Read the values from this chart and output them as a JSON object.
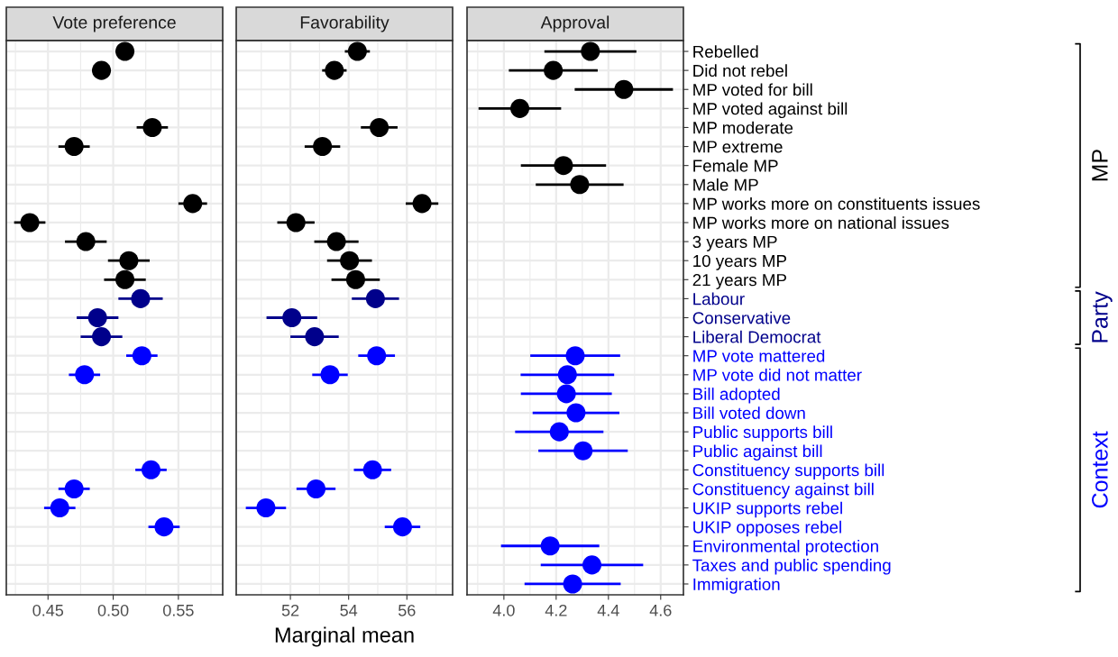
{
  "chart_data": [
    {
      "type": "scatter",
      "orientation": "horizontal",
      "title": "Vote preference",
      "tick_labels": "x",
      "grid": true,
      "marker": "circle",
      "legend": false,
      "xlim": [
        0.418,
        0.584
      ],
      "xticks": [
        {
          "value": 0.45,
          "label": "0.45"
        },
        {
          "value": 0.5,
          "label": "0.50"
        },
        {
          "value": 0.55,
          "label": "0.55"
        }
      ],
      "series": [
        {
          "colors": [
            "#000000",
            "#000000",
            "#000000",
            "#000000",
            "#000000",
            "#000000",
            "#000000",
            "#000000",
            "#000000",
            "#000000",
            "#000000",
            "#000000",
            "#000000",
            "#00008b",
            "#00008b",
            "#00008b",
            "#0000ff",
            "#0000ff",
            "#0000ff",
            "#0000ff",
            "#0000ff",
            "#0000ff",
            "#0000ff",
            "#0000ff",
            "#0000ff",
            "#0000ff",
            "#0000ff",
            "#0000ff",
            "#0000ff"
          ],
          "values": [
            0.509,
            0.491,
            null,
            null,
            0.53,
            0.47,
            null,
            null,
            0.561,
            0.436,
            0.479,
            0.512,
            0.509,
            0.521,
            0.488,
            0.491,
            0.522,
            0.478,
            null,
            null,
            null,
            null,
            0.529,
            0.47,
            0.459,
            0.539,
            null,
            null,
            null
          ],
          "errors": [
            0.007,
            0.007,
            null,
            null,
            0.012,
            0.012,
            null,
            null,
            0.011,
            0.012,
            0.016,
            0.016,
            0.016,
            0.017,
            0.016,
            0.016,
            0.012,
            0.012,
            null,
            null,
            null,
            null,
            0.012,
            0.012,
            0.012,
            0.012,
            null,
            null,
            null
          ]
        }
      ]
    },
    {
      "type": "scatter",
      "orientation": "horizontal",
      "title": "Favorability",
      "xlabel": "Marginal mean",
      "tick_labels": "x",
      "grid": true,
      "marker": "circle",
      "legend": false,
      "xlim": [
        50.14,
        57.57
      ],
      "xticks": [
        52,
        54,
        56
      ],
      "series": [
        {
          "colors": [
            "#000000",
            "#000000",
            "#000000",
            "#000000",
            "#000000",
            "#000000",
            "#000000",
            "#000000",
            "#000000",
            "#000000",
            "#000000",
            "#000000",
            "#000000",
            "#00008b",
            "#00008b",
            "#00008b",
            "#0000ff",
            "#0000ff",
            "#0000ff",
            "#0000ff",
            "#0000ff",
            "#0000ff",
            "#0000ff",
            "#0000ff",
            "#0000ff",
            "#0000ff",
            "#0000ff",
            "#0000ff",
            "#0000ff"
          ],
          "values": [
            54.3,
            53.51,
            null,
            null,
            55.05,
            53.1,
            null,
            null,
            56.52,
            52.19,
            53.58,
            54.03,
            54.24,
            54.92,
            52.05,
            52.83,
            54.96,
            53.36,
            null,
            null,
            null,
            null,
            54.82,
            52.88,
            51.16,
            55.85,
            null,
            null,
            null
          ],
          "errors": [
            0.43,
            0.42,
            null,
            null,
            0.63,
            0.61,
            null,
            null,
            0.56,
            0.64,
            0.76,
            0.77,
            0.83,
            0.81,
            0.87,
            0.83,
            0.63,
            0.61,
            null,
            null,
            null,
            null,
            0.64,
            0.67,
            0.69,
            0.61,
            null,
            null,
            null
          ]
        }
      ]
    },
    {
      "type": "scatter",
      "orientation": "horizontal",
      "title": "Approval",
      "grid": true,
      "marker": "circle",
      "legend": false,
      "categories": [
        "Rebelled",
        "Did not rebel",
        "MP voted for bill",
        "MP voted against bill",
        "MP moderate",
        "MP extreme",
        "Female MP",
        "Male MP",
        "MP works more on constituents issues",
        "MP works more on national issues",
        "3 years MP",
        "10 years MP",
        "21 years MP",
        "Labour",
        "Conservative",
        "Liberal Democrat",
        "MP vote mattered",
        "MP vote did not matter",
        "Bill adopted",
        "Bill voted down",
        "Public supports bill",
        "Public against bill",
        "Constituency supports bill",
        "Constituency against bill",
        "UKIP supports rebel",
        "UKIP opposes rebel",
        "Environmental protection",
        "Taxes and public spending",
        "Immigration"
      ],
      "xlim": [
        3.859,
        4.687
      ],
      "xticks": [
        {
          "value": 4.0,
          "label": "4.0"
        },
        {
          "value": 4.2,
          "label": "4.2"
        },
        {
          "value": 4.4,
          "label": "4.4"
        },
        {
          "value": 4.6,
          "label": "4.6"
        }
      ],
      "annotations": [
        "MP",
        "Party",
        "Context"
      ],
      "series": [
        {
          "colors": [
            "#000000",
            "#000000",
            "#000000",
            "#000000",
            "#000000",
            "#000000",
            "#000000",
            "#000000",
            "#000000",
            "#000000",
            "#000000",
            "#000000",
            "#000000",
            "#00008b",
            "#00008b",
            "#00008b",
            "#0000ff",
            "#0000ff",
            "#0000ff",
            "#0000ff",
            "#0000ff",
            "#0000ff",
            "#0000ff",
            "#0000ff",
            "#0000ff",
            "#0000ff",
            "#0000ff",
            "#0000ff",
            "#0000ff"
          ],
          "values": [
            4.331,
            4.189,
            4.459,
            4.061,
            null,
            null,
            4.228,
            4.29,
            null,
            null,
            null,
            null,
            null,
            null,
            null,
            null,
            4.273,
            4.243,
            4.239,
            4.276,
            4.212,
            4.303,
            null,
            null,
            null,
            null,
            4.177,
            4.337,
            4.263
          ],
          "errors": [
            0.176,
            0.17,
            0.188,
            0.158,
            null,
            null,
            0.163,
            0.168,
            null,
            null,
            null,
            null,
            null,
            null,
            null,
            null,
            0.172,
            0.179,
            0.174,
            0.166,
            0.169,
            0.171,
            null,
            null,
            null,
            null,
            0.188,
            0.196,
            0.184
          ]
        }
      ]
    }
  ]
}
